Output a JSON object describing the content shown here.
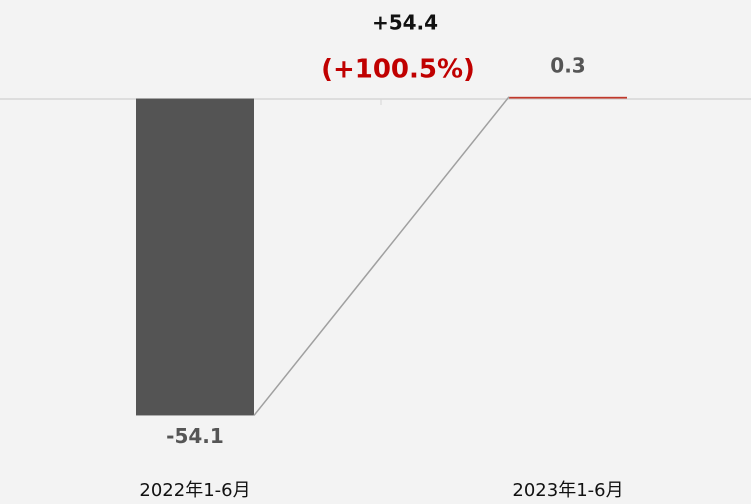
{
  "chart_data": {
    "type": "bar",
    "categories": [
      "2022年1-6月",
      "2023年1-6月"
    ],
    "values": [
      -54.1,
      0.3
    ],
    "colors": [
      "#545454",
      "#c0392b"
    ],
    "ylim": [
      -60,
      10
    ],
    "annotations": [
      "+54.4",
      "(+100.5%)"
    ]
  }
}
